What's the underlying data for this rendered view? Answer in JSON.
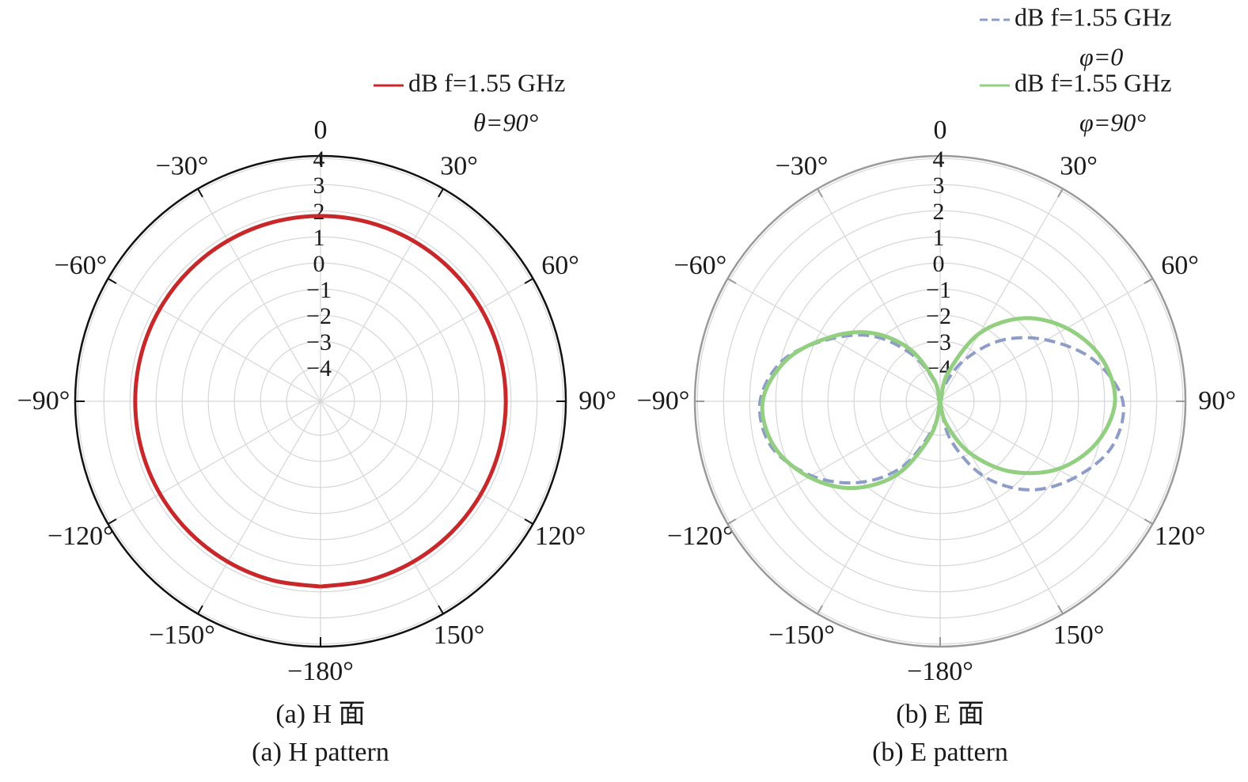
{
  "chart_data": [
    {
      "type": "polar",
      "caption": [
        "(a) H 面",
        "(a) H pattern"
      ],
      "frame_color": "#111111",
      "rlim": [
        -5.3,
        4.1
      ],
      "rticks": [
        {
          "value": -4,
          "label": "−4"
        },
        {
          "value": -3,
          "label": "−3"
        },
        {
          "value": -2,
          "label": "−2"
        },
        {
          "value": -1,
          "label": "−1"
        },
        0,
        1,
        2,
        3,
        4
      ],
      "angle_ticks": [
        0,
        {
          "value": 30,
          "label": "30°"
        },
        {
          "value": 60,
          "label": "60°"
        },
        {
          "value": 90,
          "label": "90°"
        },
        {
          "value": 120,
          "label": "120°"
        },
        {
          "value": 150,
          "label": "150°"
        },
        {
          "value": -180,
          "label": "−180°"
        },
        {
          "value": -150,
          "label": "−150°"
        },
        {
          "value": -120,
          "label": "−120°"
        },
        {
          "value": -90,
          "label": "−90°"
        },
        {
          "value": -60,
          "label": "−60°"
        },
        {
          "value": -30,
          "label": "−30°"
        }
      ],
      "x": [
        -180,
        -165,
        -150,
        -135,
        -120,
        -105,
        -90,
        -75,
        -60,
        -45,
        -30,
        -15,
        0,
        15,
        30,
        45,
        60,
        75,
        90,
        105,
        120,
        135,
        150,
        165,
        180
      ],
      "series": [
        {
          "name": [
            "dB  f=1.55 GHz",
            "θ=90°"
          ],
          "color": "#c8282a",
          "line_style": "solid",
          "values": [
            1.8,
            1.8,
            1.8,
            1.8,
            1.8,
            1.8,
            1.8,
            1.8,
            1.8,
            1.8,
            1.8,
            1.8,
            1.8,
            1.8,
            1.8,
            1.8,
            1.8,
            1.8,
            1.8,
            1.8,
            1.8,
            1.8,
            1.8,
            1.8,
            1.8
          ]
        }
      ]
    },
    {
      "type": "polar",
      "caption": [
        "(b) E 面",
        "(b) E pattern"
      ],
      "frame_color": "#9a9a9a",
      "rlim": [
        -5.3,
        4.1
      ],
      "rticks": [
        {
          "value": -4,
          "label": "−4"
        },
        {
          "value": -3,
          "label": "−3"
        },
        {
          "value": -2,
          "label": "−2"
        },
        {
          "value": -1,
          "label": "−1"
        },
        0,
        1,
        2,
        3,
        4
      ],
      "angle_ticks": [
        0,
        {
          "value": 30,
          "label": "30°"
        },
        {
          "value": 60,
          "label": "60°"
        },
        {
          "value": 90,
          "label": "90°"
        },
        {
          "value": 120,
          "label": "120°"
        },
        {
          "value": 150,
          "label": "150°"
        },
        {
          "value": -180,
          "label": "−180°"
        },
        {
          "value": -150,
          "label": "−150°"
        },
        {
          "value": -120,
          "label": "−120°"
        },
        {
          "value": -90,
          "label": "−90°"
        },
        {
          "value": -60,
          "label": "−60°"
        },
        {
          "value": -30,
          "label": "−30°"
        }
      ],
      "x": [
        -180,
        -165,
        -150,
        -135,
        -120,
        -105,
        -90,
        -75,
        -60,
        -45,
        -30,
        -15,
        0,
        15,
        30,
        45,
        60,
        75,
        90,
        105,
        120,
        135,
        150,
        165,
        180
      ],
      "series": [
        {
          "name": [
            "dB  f=1.55 GHz",
            "φ=0"
          ],
          "color": "#8e9dc8",
          "line_style": "dashed",
          "values": [
            -5.3,
            -4.2,
            -2.4,
            -0.9,
            0.4,
            1.4,
            1.6,
            0.9,
            -0.5,
            -1.8,
            -3.3,
            -4.6,
            -5.3,
            -4.7,
            -3.5,
            -2.0,
            -0.6,
            0.8,
            1.7,
            1.5,
            0.6,
            -0.5,
            -2.0,
            -3.8,
            -5.3
          ]
        },
        {
          "name": [
            "dB  f=1.55 GHz",
            "φ=90°"
          ],
          "color": "#92cf80",
          "line_style": "solid",
          "values": [
            -5.3,
            -4.0,
            -2.1,
            -0.6,
            0.5,
            1.3,
            1.5,
            0.8,
            -0.4,
            -1.6,
            -3.0,
            -4.5,
            -5.3,
            -4.2,
            -2.3,
            -0.8,
            0.3,
            1.1,
            1.4,
            0.9,
            -0.1,
            -1.5,
            -3.0,
            -4.4,
            -5.3
          ]
        }
      ]
    }
  ]
}
